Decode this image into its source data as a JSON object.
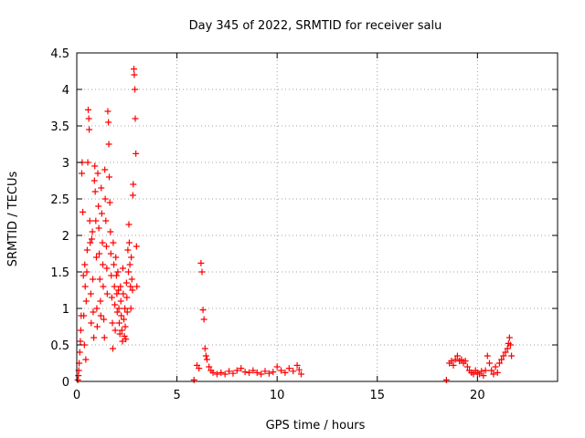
{
  "chart_data": {
    "type": "scatter",
    "title": "Day 345 of 2022, SRMTID for receiver salu",
    "xlabel": "GPS time / hours",
    "ylabel": "SRMTID / TECUs",
    "xlim": [
      0,
      24
    ],
    "ylim": [
      0,
      4.5
    ],
    "xticks": [
      0,
      5,
      10,
      15,
      20
    ],
    "xtick_labels": [
      "0",
      "5",
      "10",
      "15",
      "20"
    ],
    "yticks": [
      0,
      0.5,
      1,
      1.5,
      2,
      2.5,
      3,
      3.5,
      4,
      4.5
    ],
    "ytick_labels": [
      "0",
      "0.5",
      "1",
      "1.5",
      "2",
      "2.5",
      "3",
      "3.5",
      "4",
      "4.5"
    ],
    "grid": true,
    "marker": "+",
    "color": "#ff0000",
    "series": [
      {
        "name": "SRMTID",
        "points": [
          [
            0.05,
            0.02
          ],
          [
            0.08,
            0.08
          ],
          [
            0.1,
            0.15
          ],
          [
            0.12,
            0.25
          ],
          [
            0.15,
            0.4
          ],
          [
            0.18,
            0.55
          ],
          [
            0.2,
            0.7
          ],
          [
            0.22,
            0.9
          ],
          [
            0.25,
            2.85
          ],
          [
            0.27,
            3.0
          ],
          [
            0.3,
            2.32
          ],
          [
            0.33,
            1.45
          ],
          [
            0.35,
            0.9
          ],
          [
            0.38,
            0.5
          ],
          [
            0.4,
            1.6
          ],
          [
            0.42,
            1.3
          ],
          [
            0.45,
            0.3
          ],
          [
            0.47,
            1.1
          ],
          [
            0.5,
            1.5
          ],
          [
            0.52,
            1.8
          ],
          [
            0.55,
            3.0
          ],
          [
            0.57,
            3.72
          ],
          [
            0.6,
            3.6
          ],
          [
            0.62,
            3.45
          ],
          [
            0.65,
            2.2
          ],
          [
            0.67,
            1.9
          ],
          [
            0.7,
            1.2
          ],
          [
            0.72,
            0.8
          ],
          [
            0.75,
            1.95
          ],
          [
            0.78,
            2.05
          ],
          [
            0.8,
            1.4
          ],
          [
            0.82,
            0.95
          ],
          [
            0.85,
            0.6
          ],
          [
            0.88,
            2.75
          ],
          [
            0.9,
            2.95
          ],
          [
            0.92,
            2.6
          ],
          [
            0.95,
            2.2
          ],
          [
            0.98,
            1.7
          ],
          [
            1.0,
            1.0
          ],
          [
            1.02,
            0.75
          ],
          [
            1.05,
            2.85
          ],
          [
            1.08,
            2.4
          ],
          [
            1.1,
            2.1
          ],
          [
            1.12,
            1.75
          ],
          [
            1.15,
            1.4
          ],
          [
            1.18,
            1.1
          ],
          [
            1.2,
            0.9
          ],
          [
            1.22,
            2.65
          ],
          [
            1.25,
            2.3
          ],
          [
            1.28,
            1.9
          ],
          [
            1.3,
            1.6
          ],
          [
            1.32,
            1.3
          ],
          [
            1.35,
            0.85
          ],
          [
            1.38,
            0.6
          ],
          [
            1.4,
            2.9
          ],
          [
            1.42,
            2.5
          ],
          [
            1.45,
            2.2
          ],
          [
            1.48,
            1.85
          ],
          [
            1.5,
            1.55
          ],
          [
            1.52,
            1.2
          ],
          [
            1.55,
            3.7
          ],
          [
            1.58,
            3.55
          ],
          [
            1.6,
            3.25
          ],
          [
            1.62,
            2.8
          ],
          [
            1.65,
            2.45
          ],
          [
            1.68,
            2.05
          ],
          [
            1.7,
            1.75
          ],
          [
            1.72,
            1.45
          ],
          [
            1.75,
            1.15
          ],
          [
            1.78,
            0.8
          ],
          [
            1.8,
            0.45
          ],
          [
            1.82,
            1.9
          ],
          [
            1.85,
            1.6
          ],
          [
            1.88,
            1.3
          ],
          [
            1.9,
            1.05
          ],
          [
            1.92,
            0.7
          ],
          [
            1.95,
            1.7
          ],
          [
            1.98,
            1.45
          ],
          [
            2.0,
            1.2
          ],
          [
            2.02,
            0.95
          ],
          [
            2.05,
            1.5
          ],
          [
            2.08,
            1.25
          ],
          [
            2.1,
            1.0
          ],
          [
            2.12,
            0.8
          ],
          [
            2.15,
            0.65
          ],
          [
            2.18,
            1.3
          ],
          [
            2.2,
            1.1
          ],
          [
            2.22,
            0.9
          ],
          [
            2.25,
            0.7
          ],
          [
            2.28,
            0.55
          ],
          [
            2.3,
            1.55
          ],
          [
            2.32,
            1.2
          ],
          [
            2.35,
            0.85
          ],
          [
            2.38,
            0.62
          ],
          [
            2.4,
            1.0
          ],
          [
            2.42,
            0.75
          ],
          [
            2.45,
            0.58
          ],
          [
            2.48,
            1.35
          ],
          [
            2.5,
            1.15
          ],
          [
            2.52,
            0.95
          ],
          [
            2.55,
            1.8
          ],
          [
            2.58,
            1.5
          ],
          [
            2.6,
            2.15
          ],
          [
            2.62,
            1.9
          ],
          [
            2.65,
            1.6
          ],
          [
            2.68,
            1.3
          ],
          [
            2.7,
            1.0
          ],
          [
            2.72,
            1.7
          ],
          [
            2.75,
            1.4
          ],
          [
            2.78,
            1.25
          ],
          [
            2.8,
            2.55
          ],
          [
            2.82,
            2.7
          ],
          [
            2.85,
            4.28
          ],
          [
            2.87,
            4.2
          ],
          [
            2.9,
            4.0
          ],
          [
            2.92,
            3.6
          ],
          [
            2.95,
            3.12
          ],
          [
            2.98,
            1.85
          ],
          [
            3.0,
            1.3
          ],
          [
            5.85,
            0.02
          ],
          [
            6.0,
            0.22
          ],
          [
            6.1,
            0.18
          ],
          [
            6.2,
            1.62
          ],
          [
            6.25,
            1.5
          ],
          [
            6.3,
            0.98
          ],
          [
            6.35,
            0.85
          ],
          [
            6.4,
            0.45
          ],
          [
            6.45,
            0.35
          ],
          [
            6.5,
            0.3
          ],
          [
            6.6,
            0.2
          ],
          [
            6.7,
            0.15
          ],
          [
            6.8,
            0.12
          ],
          [
            7.0,
            0.1
          ],
          [
            7.2,
            0.12
          ],
          [
            7.4,
            0.1
          ],
          [
            7.6,
            0.14
          ],
          [
            7.8,
            0.11
          ],
          [
            8.0,
            0.15
          ],
          [
            8.2,
            0.18
          ],
          [
            8.4,
            0.13
          ],
          [
            8.6,
            0.12
          ],
          [
            8.8,
            0.15
          ],
          [
            9.0,
            0.12
          ],
          [
            9.2,
            0.1
          ],
          [
            9.4,
            0.14
          ],
          [
            9.6,
            0.11
          ],
          [
            9.8,
            0.13
          ],
          [
            10.0,
            0.2
          ],
          [
            10.2,
            0.15
          ],
          [
            10.4,
            0.12
          ],
          [
            10.6,
            0.18
          ],
          [
            10.8,
            0.14
          ],
          [
            11.0,
            0.22
          ],
          [
            11.1,
            0.16
          ],
          [
            11.2,
            0.1
          ],
          [
            18.45,
            0.02
          ],
          [
            18.6,
            0.25
          ],
          [
            18.7,
            0.28
          ],
          [
            18.8,
            0.22
          ],
          [
            18.9,
            0.3
          ],
          [
            19.0,
            0.35
          ],
          [
            19.1,
            0.28
          ],
          [
            19.2,
            0.3
          ],
          [
            19.3,
            0.25
          ],
          [
            19.4,
            0.28
          ],
          [
            19.5,
            0.2
          ],
          [
            19.6,
            0.15
          ],
          [
            19.7,
            0.12
          ],
          [
            19.8,
            0.1
          ],
          [
            19.9,
            0.15
          ],
          [
            20.0,
            0.12
          ],
          [
            20.1,
            0.1
          ],
          [
            20.2,
            0.14
          ],
          [
            20.3,
            0.08
          ],
          [
            20.4,
            0.15
          ],
          [
            20.5,
            0.35
          ],
          [
            20.6,
            0.25
          ],
          [
            20.7,
            0.15
          ],
          [
            20.8,
            0.1
          ],
          [
            20.9,
            0.2
          ],
          [
            21.0,
            0.12
          ],
          [
            21.1,
            0.25
          ],
          [
            21.2,
            0.3
          ],
          [
            21.3,
            0.35
          ],
          [
            21.4,
            0.4
          ],
          [
            21.5,
            0.45
          ],
          [
            21.55,
            0.52
          ],
          [
            21.6,
            0.6
          ],
          [
            21.65,
            0.5
          ],
          [
            21.7,
            0.35
          ]
        ]
      }
    ]
  }
}
